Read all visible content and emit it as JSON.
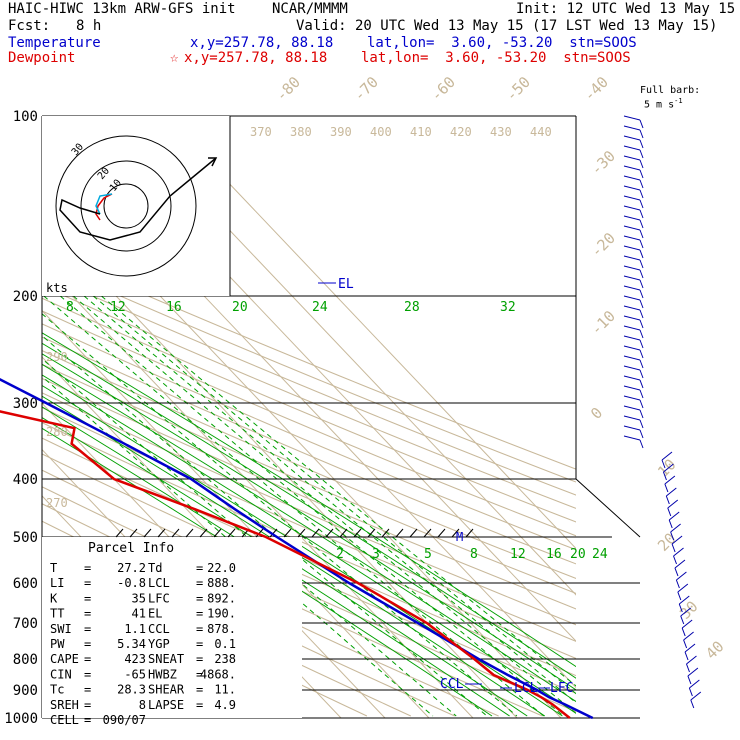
{
  "header": {
    "model": "HAIC-HIWC 13km ARW-GFS init",
    "agency": "NCAR/MMMM",
    "init": "Init: 12 UTC Wed 13 May 15",
    "fcst_label": "Fcst:",
    "fcst_value": "8 h",
    "valid": "Valid: 20 UTC Wed 13 May 15 (17 LST Wed 13 May 15)",
    "temp_label": "Temperature",
    "dew_label": "Dewpoint",
    "temp_loc": "x,y=257.78, 88.18    lat,lon=  3.60, -53.20  stn=SOOS",
    "dew_loc": "x,y=257.78, 88.18    lat,lon=  3.60, -53.20  stn=SOOS",
    "barb_note_1": "Full barb:",
    "barb_note_2": "5 m s",
    "barb_note_sup": "-1"
  },
  "colors": {
    "temperature": "#0000cc",
    "dewpoint": "#dd0000",
    "mixing": "#00a000",
    "adiabat": "#c8b89a"
  },
  "hodograph": {
    "units": "kts",
    "ring_labels": [
      "30",
      "20",
      "10"
    ]
  },
  "parcel": {
    "title": "Parcel Info",
    "rows": [
      [
        "T",
        "27.2",
        "Td",
        "22.0"
      ],
      [
        "LI",
        "-0.8",
        "LCL",
        "888."
      ],
      [
        "K",
        "35",
        "LFC",
        "892."
      ],
      [
        "TT",
        "41",
        "EL",
        "190."
      ],
      [
        "SWI",
        "1.1",
        "CCL",
        "878."
      ],
      [
        "PW",
        "5.34",
        "YGP",
        "0.1"
      ],
      [
        "CAPE",
        "423",
        "SNEAT",
        "238"
      ],
      [
        "CIN",
        "-65",
        "HWBZ",
        "4868."
      ],
      [
        "Tc",
        "28.3",
        "SHEAR",
        "11."
      ],
      [
        "SREH",
        "8",
        "LAPSE",
        "4.9"
      ],
      [
        "CELL",
        "090/07",
        "",
        ""
      ]
    ]
  },
  "levels": {
    "el": "EL",
    "ccl": "CCL",
    "lcl": "LCL",
    "lfc": "LFC",
    "mix_mark": "M"
  },
  "chart_data": {
    "type": "line",
    "title": "",
    "y_pressure_ticks": [
      "100",
      "200",
      "300",
      "400",
      "500",
      "600",
      "700",
      "800",
      "900",
      "1000"
    ],
    "isotherm_labels": [
      "-80",
      "-70",
      "-60",
      "-50",
      "-40",
      "-30",
      "-20",
      "-10",
      "0",
      "10",
      "20",
      "30",
      "40"
    ],
    "theta_labels": [
      "370",
      "380",
      "390",
      "400",
      "410",
      "420",
      "430",
      "440",
      "290",
      "280",
      "270"
    ],
    "mixing_ratio_labels_upper": [
      "8",
      "12",
      "16",
      "20",
      "24",
      "28",
      "32"
    ],
    "mixing_ratio_labels_lower": [
      "2",
      "3",
      "5",
      "8",
      "12",
      "16",
      "20",
      "24"
    ],
    "series": [
      {
        "name": "Temperature",
        "pressure": [
          1000,
          950,
          925,
          900,
          850,
          800,
          700,
          600,
          500,
          450,
          400,
          350,
          300,
          250,
          200,
          150,
          100
        ],
        "values": [
          27.2,
          23.8,
          21.8,
          20.6,
          17.2,
          14.0,
          8.0,
          1.0,
          -5.5,
          -9.0,
          -12.5,
          -20.0,
          -29.0,
          -40.0,
          -53.0,
          -66.0,
          -76.0
        ]
      },
      {
        "name": "Dewpoint",
        "pressure": [
          1000,
          950,
          925,
          900,
          850,
          800,
          700,
          600,
          500,
          450,
          400,
          350,
          330,
          300,
          280,
          250,
          200,
          150,
          100
        ],
        "values": [
          22.0,
          21.0,
          20.0,
          18.5,
          14.0,
          13.0,
          10.0,
          3.0,
          -8.0,
          -18.0,
          -30.0,
          -32.0,
          -28.0,
          -48.0,
          -58.0,
          -60.0,
          -67.0,
          -85.0,
          -90.0
        ]
      }
    ]
  }
}
